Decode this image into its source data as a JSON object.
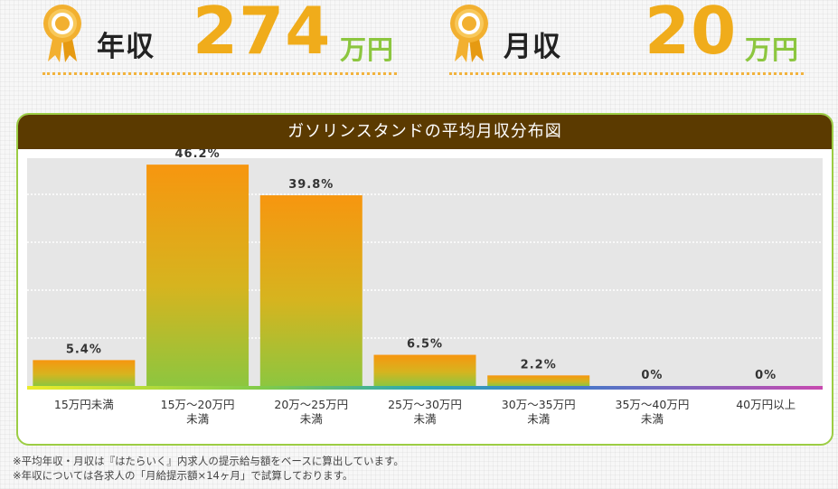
{
  "colors": {
    "gold": "#f0ac1b",
    "green": "#8cc63f",
    "header_brown": "#5b3a00",
    "panel_border": "#9ccd44",
    "plot_bg": "#e6e6e6"
  },
  "stats": {
    "annual": {
      "label": "年収",
      "value": "274",
      "unit": "万円",
      "icon": "medal-ribbon-icon"
    },
    "monthly": {
      "label": "月収",
      "value": "20",
      "unit": "万円",
      "icon": "medal-ribbon-icon"
    }
  },
  "chart_title": "ガソリンスタンドの平均月収分布図",
  "chart_data": {
    "type": "bar",
    "categories": [
      [
        "15万円未満"
      ],
      [
        "15万～20万円",
        "未満"
      ],
      [
        "20万～25万円",
        "未満"
      ],
      [
        "25万～30万円",
        "未満"
      ],
      [
        "30万～35万円",
        "未満"
      ],
      [
        "35万～40万円",
        "未満"
      ],
      [
        "40万円以上"
      ]
    ],
    "values": [
      5.4,
      46.2,
      39.8,
      6.5,
      2.2,
      0,
      0
    ],
    "value_labels": [
      "5.4%",
      "46.2%",
      "39.8%",
      "6.5%",
      "2.2%",
      "0%",
      "0%"
    ],
    "ylim": [
      0,
      60
    ],
    "grid": true,
    "legend": "none"
  },
  "notes": [
    "※平均年収・月収は『はたらいく』内求人の提示給与額をベースに算出しています。",
    "※年収については各求人の「月給提示額×14ヶ月」で試算しております。"
  ]
}
